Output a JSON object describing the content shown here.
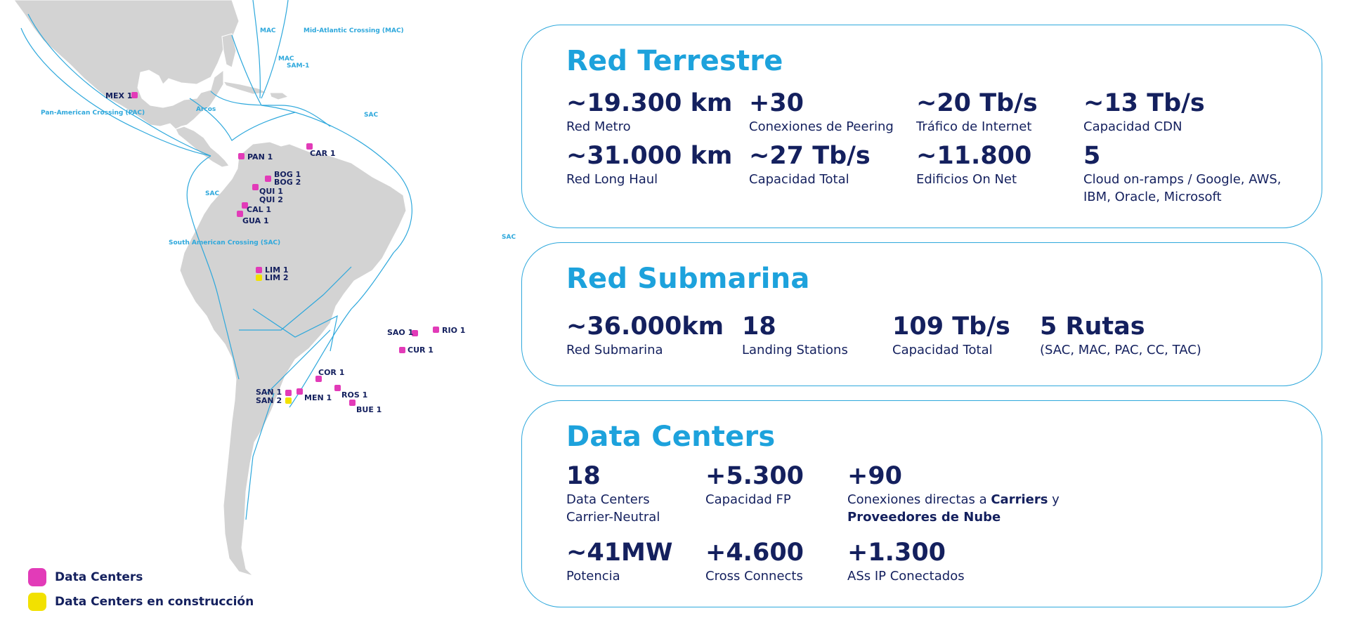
{
  "map": {
    "route_labels": [
      "MAC",
      "Mid-Atlantic Crossing (MAC)",
      "MAC",
      "SAM-1",
      "Pan-American Crossing (PAC)",
      "Arcos",
      "SAC",
      "SAC",
      "SAC",
      "South American Crossing (SAC)"
    ],
    "cities": [
      "MEX 1",
      "PAN 1",
      "CAR 1",
      "BOG 1",
      "BOG 2",
      "QUI 1",
      "QUI 2",
      "CAL 1",
      "GUA 1",
      "LIM 1",
      "LIM 2",
      "SAO 1",
      "RIO 1",
      "CUR 1",
      "COR 1",
      "ROS 1",
      "SAN 1",
      "SAN 2",
      "MEN 1",
      "BUE 1"
    ],
    "colors": {
      "land": "#d3d3d3",
      "route": "#2ea8dc",
      "data_center": "#e23bb8",
      "under_construction": "#f2e100",
      "text": "#14205e"
    }
  },
  "legend": {
    "data_centers": "Data Centers",
    "under_construction": "Data Centers en construcción"
  },
  "terrestre": {
    "title": "Red Terrestre",
    "stats": [
      {
        "value": "~19.300 km",
        "label": "Red Metro"
      },
      {
        "value": "+30",
        "label": "Conexiones de Peering"
      },
      {
        "value": "~20 Tb/s",
        "label": "Tráfico de Internet"
      },
      {
        "value": "~13 Tb/s",
        "label": "Capacidad CDN"
      },
      {
        "value": "~31.000 km",
        "label": "Red Long Haul"
      },
      {
        "value": "~27 Tb/s",
        "label": "Capacidad Total"
      },
      {
        "value": "~11.800",
        "label": "Edificios On Net"
      },
      {
        "value": "5",
        "label": "Cloud on-ramps / Google, AWS, IBM, Oracle, Microsoft"
      }
    ]
  },
  "submarina": {
    "title": "Red Submarina",
    "stats": [
      {
        "value": "~36.000km",
        "label": "Red Submarina"
      },
      {
        "value": "18",
        "label": "Landing Stations"
      },
      {
        "value": "109 Tb/s",
        "label": "Capacidad Total"
      },
      {
        "value": "5 Rutas",
        "label": "(SAC, MAC, PAC, CC, TAC)"
      }
    ]
  },
  "datacenters": {
    "title": "Data Centers",
    "stats": [
      {
        "value": "18",
        "label": "Data Centers Carrier-Neutral"
      },
      {
        "value": "+5.300",
        "label": "Capacidad FP"
      },
      {
        "value": "+90",
        "label_pre": "Conexiones directas a ",
        "label_b1": "Carriers",
        "label_mid": " y",
        "label_b2": "Proveedores de Nube"
      },
      {
        "value": "~41MW",
        "label": "Potencia"
      },
      {
        "value": "+4.600",
        "label": "Cross Connects"
      },
      {
        "value": "+1.300",
        "label": "ASs IP Conectados"
      }
    ]
  }
}
